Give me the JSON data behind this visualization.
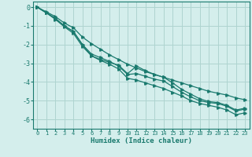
{
  "xlabel": "Humidex (Indice chaleur)",
  "bg_color": "#d4eeec",
  "grid_color": "#aed4d0",
  "line_color": "#1a7a6e",
  "xlim": [
    -0.5,
    23.5
  ],
  "ylim": [
    -6.5,
    0.3
  ],
  "xticks": [
    0,
    1,
    2,
    3,
    4,
    5,
    6,
    7,
    8,
    9,
    10,
    11,
    12,
    13,
    14,
    15,
    16,
    17,
    18,
    19,
    20,
    21,
    22,
    23
  ],
  "yticks": [
    0,
    -1,
    -2,
    -3,
    -4,
    -5,
    -6
  ],
  "s_upper": [
    0.0,
    -0.25,
    -0.5,
    -0.85,
    -1.1,
    -1.6,
    -1.95,
    -2.25,
    -2.55,
    -2.8,
    -3.05,
    -3.25,
    -3.45,
    -3.6,
    -3.75,
    -3.9,
    -4.05,
    -4.2,
    -4.35,
    -4.5,
    -4.6,
    -4.7,
    -4.85,
    -4.95
  ],
  "s_mid_upper": [
    0.0,
    -0.3,
    -0.6,
    -1.0,
    -1.3,
    -2.0,
    -2.6,
    -2.8,
    -2.95,
    -3.1,
    -3.55,
    -3.15,
    -3.4,
    -3.6,
    -3.75,
    -4.05,
    -4.4,
    -4.65,
    -4.9,
    -5.05,
    -5.1,
    -5.25,
    -5.5,
    -5.4
  ],
  "s_mid_lower": [
    0.0,
    -0.3,
    -0.6,
    -1.0,
    -1.3,
    -2.0,
    -2.5,
    -2.7,
    -2.9,
    -3.15,
    -3.6,
    -3.55,
    -3.7,
    -3.85,
    -3.95,
    -4.25,
    -4.55,
    -4.8,
    -5.0,
    -5.1,
    -5.15,
    -5.3,
    -5.55,
    -5.45
  ],
  "s_lower": [
    0.0,
    -0.3,
    -0.65,
    -1.05,
    -1.4,
    -2.1,
    -2.6,
    -2.85,
    -3.05,
    -3.3,
    -3.8,
    -3.9,
    -4.05,
    -4.2,
    -4.35,
    -4.55,
    -4.75,
    -5.0,
    -5.15,
    -5.25,
    -5.35,
    -5.5,
    -5.75,
    -5.65
  ]
}
